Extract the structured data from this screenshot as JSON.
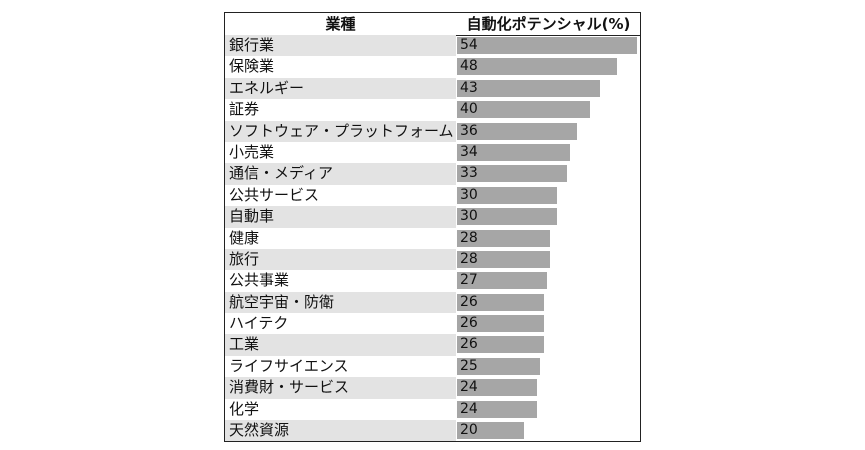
{
  "chart_data": {
    "type": "bar",
    "header": {
      "category": "業種",
      "value": "自動化ポテンシャル(%)"
    },
    "categories": [
      "銀行業",
      "保険業",
      "エネルギー",
      "証券",
      "ソフトウェア・プラットフォーム",
      "小売業",
      "通信・メディア",
      "公共サービス",
      "自動車",
      "健康",
      "旅行",
      "公共事業",
      "航空宇宙・防衛",
      "ハイテク",
      "工業",
      "ライフサイエンス",
      "消費財・サービス",
      "化学",
      "天然資源"
    ],
    "values": [
      54,
      48,
      43,
      40,
      36,
      34,
      33,
      30,
      30,
      28,
      28,
      27,
      26,
      26,
      26,
      25,
      24,
      24,
      20
    ],
    "xlim": [
      0,
      55
    ],
    "colors": {
      "bar": "#a6a6a6",
      "stripe": "#e3e3e3"
    }
  }
}
